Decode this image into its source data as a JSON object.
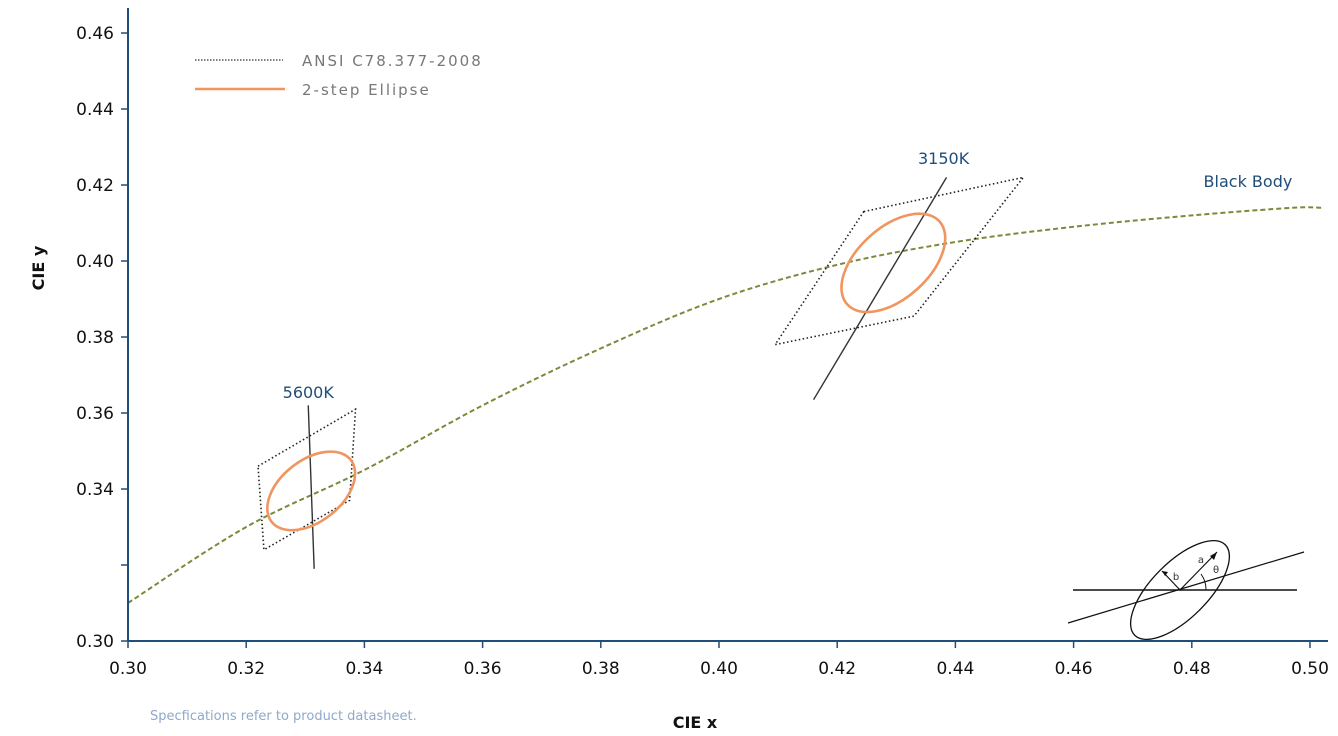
{
  "chart_data": {
    "type": "line",
    "title": "",
    "xlabel": "CIE x",
    "ylabel": "CIE y",
    "xlim": [
      0.3,
      0.5
    ],
    "ylim": [
      0.3,
      0.46
    ],
    "x_ticks": [
      "0.30",
      "0.32",
      "0.34",
      "0.36",
      "0.38",
      "0.40",
      "0.42",
      "0.44",
      "0.46",
      "0.48",
      "0.50"
    ],
    "x_tick_values": [
      0.3,
      0.32,
      0.34,
      0.36,
      0.38,
      0.4,
      0.42,
      0.44,
      0.46,
      0.48,
      0.5
    ],
    "y_ticks": [
      "0.30",
      "",
      "0.34",
      "0.36",
      "0.38",
      "0.40",
      "0.42",
      "0.44",
      "0.46"
    ],
    "y_tick_values": [
      0.3,
      0.32,
      0.34,
      0.36,
      0.38,
      0.4,
      0.42,
      0.44,
      0.46
    ],
    "grid": false,
    "legend_position": "top-left",
    "legend": [
      {
        "label": "ANSI C78.377-2008",
        "style": "dotted",
        "color": "#555555"
      },
      {
        "label": "2-step Ellipse",
        "style": "solid",
        "color": "#f0955f"
      }
    ],
    "series": [
      {
        "name": "Black Body",
        "style": "dashed",
        "color": "#7a8a3a",
        "x": [
          0.3,
          0.32,
          0.34,
          0.36,
          0.38,
          0.4,
          0.42,
          0.44,
          0.46,
          0.48,
          0.497,
          0.502
        ],
        "y": [
          0.31,
          0.33,
          0.345,
          0.362,
          0.377,
          0.39,
          0.399,
          0.405,
          0.409,
          0.412,
          0.414,
          0.414
        ]
      }
    ],
    "ansi_quadrangles": [
      {
        "label": "5600K",
        "points": [
          [
            0.322,
            0.346
          ],
          [
            0.3385,
            0.361
          ],
          [
            0.3375,
            0.337
          ],
          [
            0.323,
            0.324
          ]
        ]
      },
      {
        "label": "3150K",
        "points": [
          [
            0.4245,
            0.413
          ],
          [
            0.4515,
            0.422
          ],
          [
            0.433,
            0.3855
          ],
          [
            0.4095,
            0.378
          ]
        ]
      }
    ],
    "isotherm_lines": [
      {
        "label": "5600K",
        "from": [
          0.3305,
          0.362
        ],
        "to": [
          0.3315,
          0.319
        ]
      },
      {
        "label": "3150K",
        "from": [
          0.4385,
          0.422
        ],
        "to": [
          0.416,
          0.3635
        ]
      }
    ],
    "ellipses": [
      {
        "label": "5600K",
        "center": [
          0.331,
          0.3395
        ],
        "a": 0.0085,
        "b": 0.0052,
        "angle_deg": 38
      },
      {
        "label": "3150K",
        "center": [
          0.4295,
          0.3995
        ],
        "a": 0.0105,
        "b": 0.006,
        "angle_deg": 42
      }
    ],
    "annotations": [
      {
        "text": "5600K",
        "x": 0.3305,
        "y": 0.364
      },
      {
        "text": "3150K",
        "x": 0.438,
        "y": 0.4255
      },
      {
        "text": "Black Body",
        "x": 0.4895,
        "y": 0.4195
      }
    ],
    "inset_diagram": {
      "labels": [
        "b",
        "a",
        "θ"
      ]
    },
    "footnote": "Specfications refer to product datasheet."
  },
  "colors": {
    "axis": "#1f4e79",
    "black_body": "#7a8a3a",
    "ellipse": "#f0955f",
    "ansi": "#222222",
    "label": "#1f4e79"
  }
}
